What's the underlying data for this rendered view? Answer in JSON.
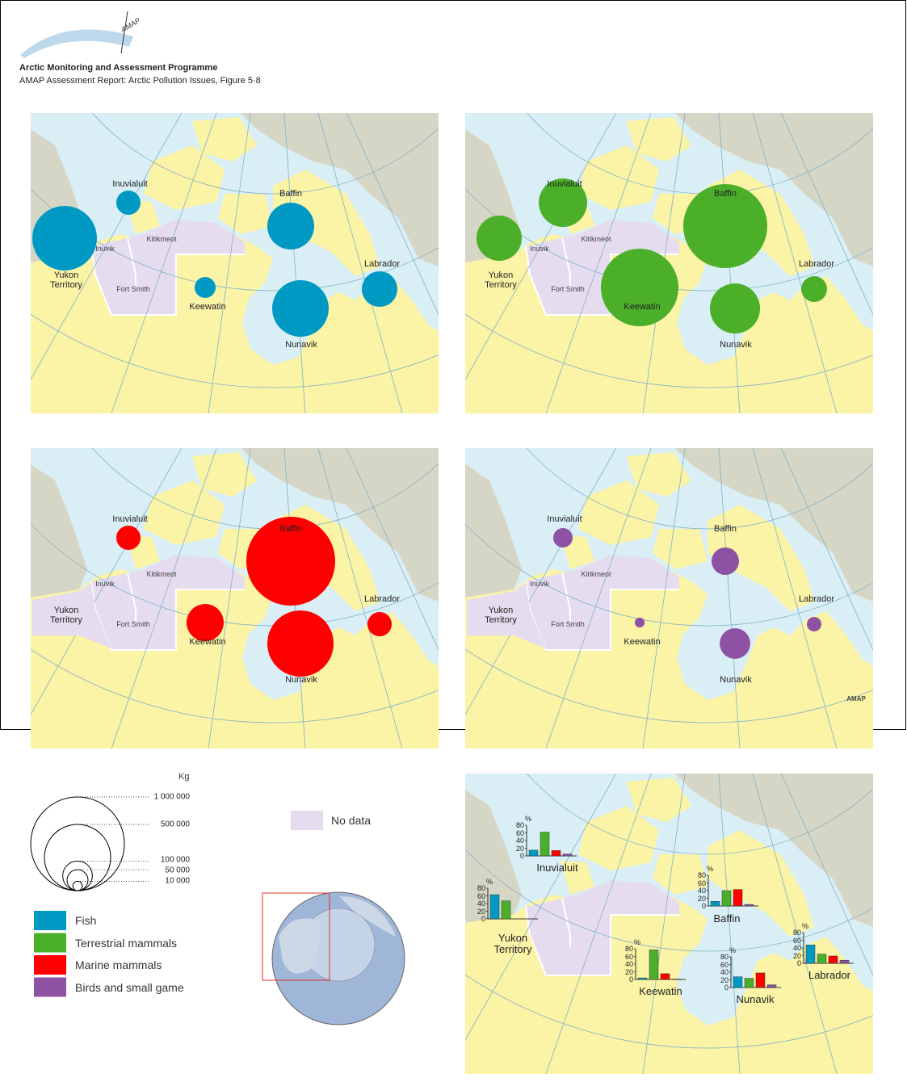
{
  "header": {
    "logo": "AMAP",
    "title": "Arctic Monitoring and Assessment Programme",
    "subtitle": "AMAP Assessment Report: Arctic Pollution Issues, Figure 5·8"
  },
  "chart_data": [
    {
      "type": "bubble-map",
      "regions": [
        "Inuvialuit",
        "Yukon Territory",
        "Baffin",
        "Keewatin",
        "Nunavik",
        "Labrador"
      ],
      "districts": [
        "Inuvik",
        "Kitikmeot",
        "Fort Smith"
      ],
      "series": [
        {
          "name": "Fish",
          "color": "#0099c3",
          "values": [
            67000,
            475000,
            250000,
            50000,
            364000,
            144000
          ]
        },
        {
          "name": "Terrestrial mammals",
          "color": "#4caf29",
          "values": [
            267000,
            233000,
            804000,
            685000,
            286000,
            76000
          ]
        },
        {
          "name": "Marine mammals",
          "color": "#ff0000",
          "values": [
            67000,
            null,
            900000,
            157000,
            500000,
            67000
          ]
        },
        {
          "name": "Birds and small game",
          "color": "#8e52a4",
          "values": [
            43000,
            null,
            86000,
            11000,
            107000,
            24000
          ]
        }
      ],
      "size_legend": {
        "title": "Kg",
        "ticks": [
          {
            "value": 1000000,
            "label": "1 000 000"
          },
          {
            "value": 500000,
            "label": "500 000"
          },
          {
            "value": 100000,
            "label": "100 000"
          },
          {
            "value": 50000,
            "label": "50 000"
          },
          {
            "value": 10000,
            "label": "10 000"
          }
        ]
      },
      "no_data_label": "No data",
      "credit": "AMAP"
    },
    {
      "type": "bar-map",
      "regions": [
        "Inuvialuit",
        "Yukon Territory",
        "Baffin",
        "Keewatin",
        "Nunavik",
        "Labrador"
      ],
      "unit": "%",
      "ylim": [
        0,
        80
      ],
      "yticks": [
        0,
        20,
        40,
        60,
        80
      ],
      "series": [
        {
          "color": "#0099c3",
          "values": [
            15,
            63,
            12,
            4,
            28,
            48
          ]
        },
        {
          "color": "#4caf29",
          "values": [
            62,
            47,
            40,
            77,
            24,
            24
          ]
        },
        {
          "color": "#ff0000",
          "values": [
            14,
            null,
            43,
            15,
            38,
            19
          ]
        },
        {
          "color": "#8e52a4",
          "values": [
            5,
            null,
            4,
            1,
            7,
            8
          ]
        }
      ]
    }
  ]
}
